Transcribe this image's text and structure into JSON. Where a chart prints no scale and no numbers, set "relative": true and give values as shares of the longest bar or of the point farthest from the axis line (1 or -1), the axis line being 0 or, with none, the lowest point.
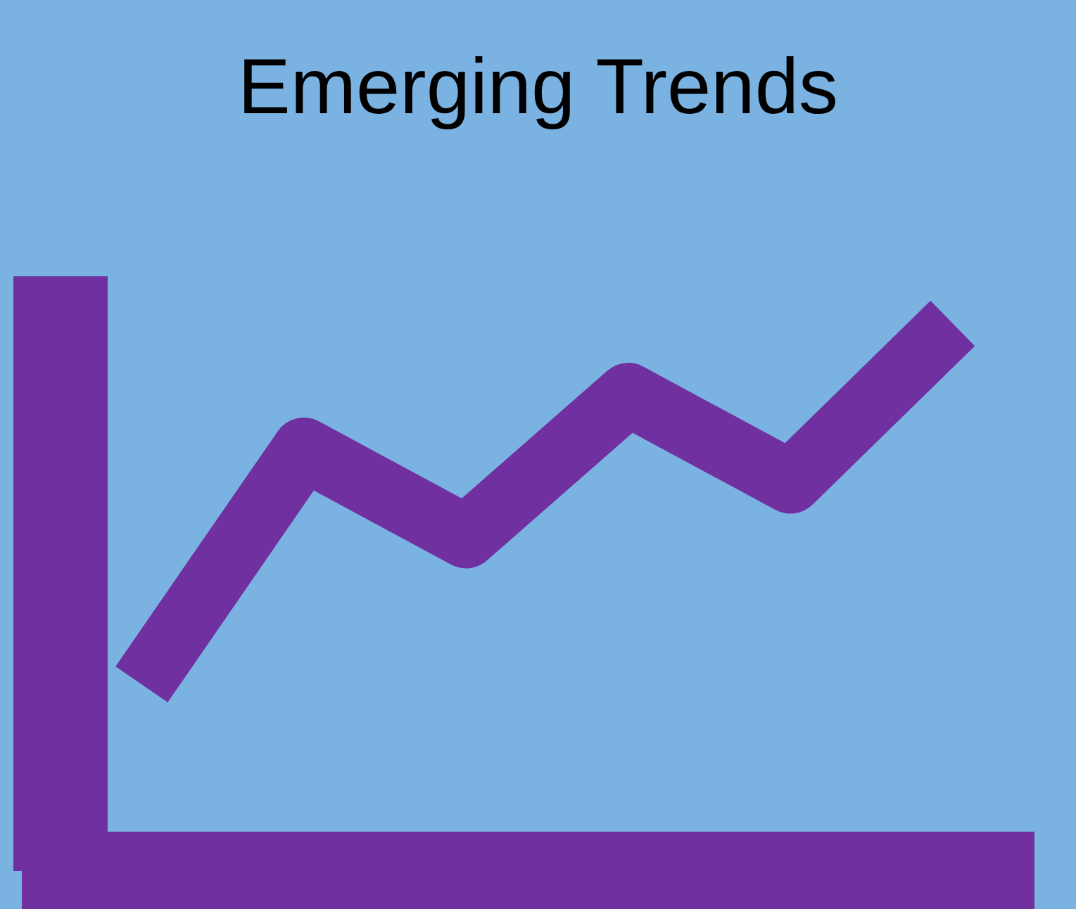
{
  "chart_data": {
    "type": "line",
    "title": "Emerging Trends",
    "categories": [
      null,
      null,
      null,
      null,
      null,
      null
    ],
    "relative": true,
    "series": [
      {
        "color": "#7030a0",
        "values": [
          0.34,
          0.77,
          0.61,
          0.87,
          0.71,
          1
        ]
      }
    ],
    "marker": "none",
    "grid": false,
    "tick_labels": false,
    "legend": false
  }
}
